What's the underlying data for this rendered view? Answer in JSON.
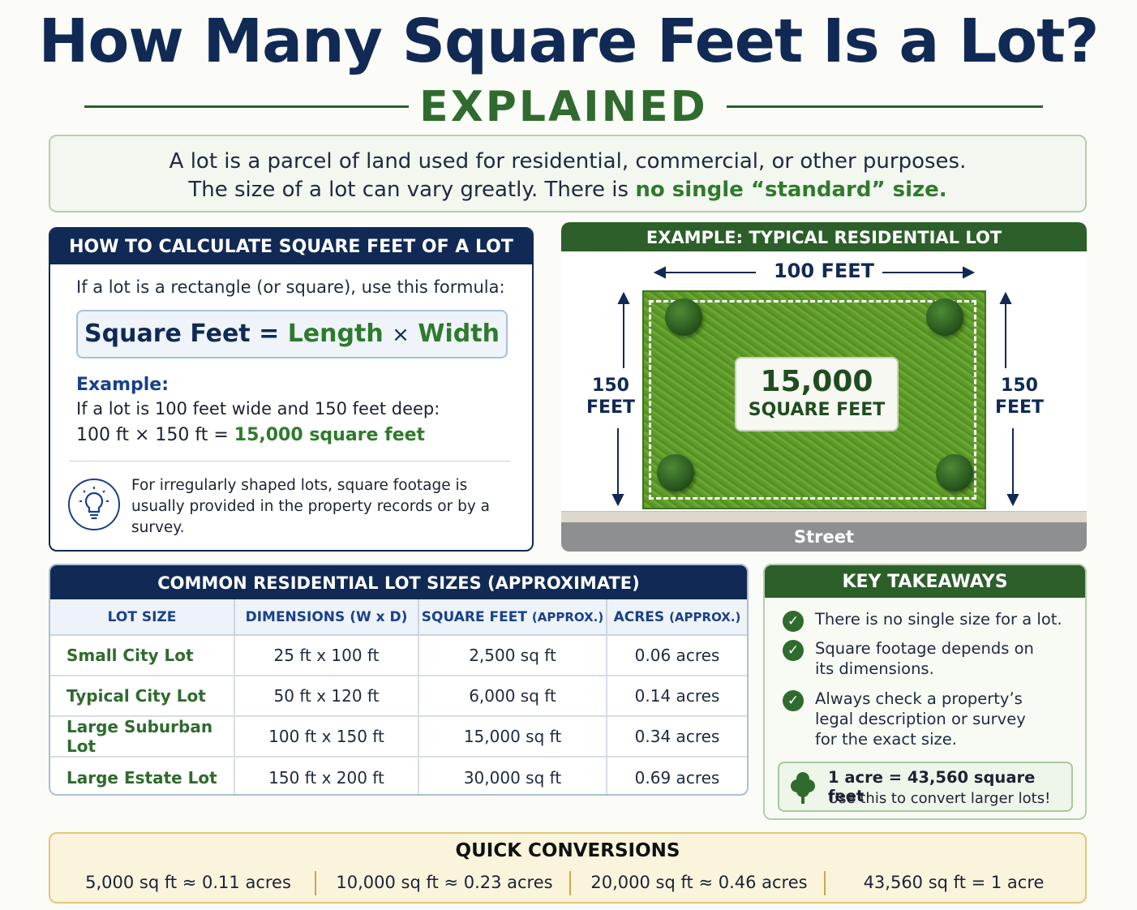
{
  "title": "How Many Square Feet Is a Lot?",
  "subtitle": "EXPLAINED",
  "intro": {
    "line1": "A lot is a parcel of land used for residential, commercial, or other purposes.",
    "line2_prefix": "The size of a lot can vary greatly.  There is ",
    "line2_highlight": "no single “standard” size."
  },
  "calculate": {
    "header": "HOW TO CALCULATE SQUARE FEET OF A LOT",
    "intro": "If a lot is a rectangle (or square), use this formula:",
    "formula": {
      "lhs": "Square Feet",
      "eq": "=",
      "a": "Length",
      "times": "×",
      "b": "Width"
    },
    "example_label": "Example:",
    "example_line1": "If a lot is 100 feet wide and 150 feet deep:",
    "example_line2_prefix": "100 ft × 150 ft = ",
    "example_result": "15,000 square feet",
    "note_icon": "lightbulb-icon",
    "note": "For irregularly shaped lots, square footage is usually provided in the property records or by a survey."
  },
  "example_lot": {
    "header": "EXAMPLE: TYPICAL RESIDENTIAL LOT",
    "width_label": "100 FEET",
    "depth_label_left": "150\nFEET",
    "depth_label_right": "150\nFEET",
    "area_value": "15,000",
    "area_unit": "SQUARE FEET",
    "street": "Street"
  },
  "lot_sizes": {
    "header": "COMMON RESIDENTIAL LOT SIZES (APPROXIMATE)",
    "columns": [
      {
        "main": "LOT SIZE",
        "sub": ""
      },
      {
        "main": "DIMENSIONS (W x D)",
        "sub": ""
      },
      {
        "main": "SQUARE FEET ",
        "sub": "(APPROX.)"
      },
      {
        "main": "ACRES ",
        "sub": "(APPROX.)"
      }
    ],
    "rows": [
      [
        "Small City Lot",
        "25 ft x 100 ft",
        "2,500 sq ft",
        "0.06 acres"
      ],
      [
        "Typical City Lot",
        "50 ft x 120 ft",
        "6,000 sq ft",
        "0.14 acres"
      ],
      [
        "Large Suburban Lot",
        "100 ft x 150 ft",
        "15,000 sq ft",
        "0.34 acres"
      ],
      [
        "Large Estate Lot",
        "150 ft x 200 ft",
        "30,000 sq ft",
        "0.69 acres"
      ]
    ]
  },
  "takeaways": {
    "header": "KEY TAKEAWAYS",
    "items": [
      "There is no single size for a lot.",
      "Square footage depends on its dimensions.",
      "Always check a property’s legal description or survey for the exact size."
    ],
    "acre_icon": "tree-icon",
    "acre_line1": "1 acre = 43,560 square feet",
    "acre_line2": "Use this to convert larger lots!"
  },
  "conversions": {
    "header": "QUICK CONVERSIONS",
    "items": [
      "5,000 sq ft ≈ 0.11 acres",
      "10,000 sq ft ≈ 0.23 acres",
      "20,000 sq ft ≈ 0.46 acres",
      "43,560 sq ft = 1 acre"
    ]
  },
  "colors": {
    "navy": "#102a55",
    "green": "#2f6b2e",
    "accent_green": "#2f7a2d",
    "gold_border": "#e0c777"
  }
}
